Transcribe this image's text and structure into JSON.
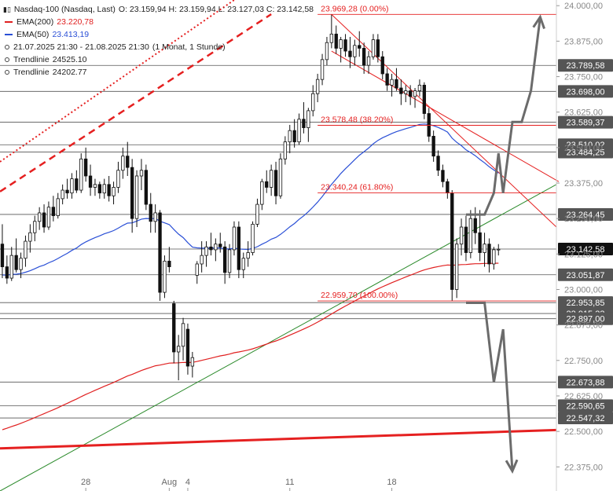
{
  "legend": {
    "instrument": "Nasdaq-100 (Nasdaq, Last)",
    "ohlc": "O: 23.159,94  H: 23.159,94  L: 23.127,03  C: 23.142,58",
    "ema200_label": "EMA(200)",
    "ema200_value": "23.220,78",
    "ema50_label": "EMA(50)",
    "ema50_value": "23.413,19",
    "period": "21.07.2025 21:30 - 21.08.2025 21:30",
    "interval": "(1 Monat, 1 Stunde)",
    "trend1_label": "Trendlinie",
    "trend1_value": "24525.10",
    "trend2_label": "Trendlinie",
    "trend2_value": "24202.77",
    "bars_icon": "candlestick-icon",
    "colors": {
      "ema200": "#e02020",
      "ema50": "#2a4fd6"
    }
  },
  "chart_data": {
    "type": "candlestick",
    "x_tick_labels": [
      {
        "label": "28",
        "bar": 18
      },
      {
        "label": "Aug",
        "bar": 36
      },
      {
        "label": "4",
        "bar": 40
      },
      {
        "label": "11",
        "bar": 62
      },
      {
        "label": "18",
        "bar": 84
      }
    ],
    "y_ticks": [
      24000,
      23875,
      23750,
      23625,
      23500,
      23375,
      23250,
      23125,
      23000,
      22875,
      22750,
      22625,
      22500,
      22375
    ],
    "y_tick_labels": [
      "24.000,00",
      "23.875,00",
      "23.750,00",
      "23.625,00",
      "23.500,00",
      "23.375,00",
      "23.250,00",
      "23.125,00",
      "23.000,00",
      "22.875,00",
      "22.750,00",
      "22.625,00",
      "22.500,00",
      "22.375,00"
    ],
    "ylim": [
      22290,
      24020
    ],
    "bars_total": 120,
    "levels": [
      {
        "value": 23789.58,
        "label": "23.789,58",
        "highlight": false
      },
      {
        "value": 23698.0,
        "label": "23.698,00",
        "highlight": false
      },
      {
        "value": 23589.37,
        "label": "23.589,37",
        "highlight": false
      },
      {
        "value": 23510.02,
        "label": "23.510,02",
        "highlight": false
      },
      {
        "value": 23484.25,
        "label": "23.484,25",
        "highlight": false
      },
      {
        "value": 23264.45,
        "label": "23.264,45",
        "highlight": false
      },
      {
        "value": 23142.58,
        "label": "23.142,58",
        "highlight": true
      },
      {
        "value": 23051.87,
        "label": "23.051,87",
        "highlight": false
      },
      {
        "value": 22953.85,
        "label": "22.953,85",
        "highlight": false
      },
      {
        "value": 22915.33,
        "label": "22.915,33",
        "highlight": false
      },
      {
        "value": 22897.0,
        "label": "22.897,00",
        "highlight": false
      },
      {
        "value": 22673.88,
        "label": "22.673,88",
        "highlight": false
      },
      {
        "value": 22590.65,
        "label": "22.590,65",
        "highlight": false
      },
      {
        "value": 22547.32,
        "label": "22.547,32",
        "highlight": false
      }
    ],
    "fibonacci": [
      {
        "value": 23969.28,
        "label": "23.969,28 (0.00%)"
      },
      {
        "value": 23578.48,
        "label": "23.578,48 (38.20%)"
      },
      {
        "value": 23340.24,
        "label": "23.340,24 (61.80%)"
      },
      {
        "value": 22959.7,
        "label": "22.959,70 (100.00%)"
      }
    ],
    "fib_start_bar": 68,
    "ohlc": [
      [
        23160,
        23230,
        23040,
        23080
      ],
      [
        23080,
        23120,
        23020,
        23040
      ],
      [
        23040,
        23150,
        23030,
        23120
      ],
      [
        23120,
        23180,
        23060,
        23070
      ],
      [
        23070,
        23130,
        23040,
        23110
      ],
      [
        23110,
        23190,
        23080,
        23170
      ],
      [
        23170,
        23230,
        23130,
        23200
      ],
      [
        23200,
        23260,
        23170,
        23240
      ],
      [
        23240,
        23290,
        23210,
        23270
      ],
      [
        23270,
        23300,
        23200,
        23220
      ],
      [
        23220,
        23310,
        23210,
        23290
      ],
      [
        23290,
        23330,
        23240,
        23260
      ],
      [
        23260,
        23340,
        23250,
        23320
      ],
      [
        23320,
        23370,
        23300,
        23350
      ],
      [
        23350,
        23390,
        23320,
        23340
      ],
      [
        23340,
        23410,
        23320,
        23390
      ],
      [
        23390,
        23420,
        23340,
        23350
      ],
      [
        23350,
        23480,
        23340,
        23460
      ],
      [
        23460,
        23500,
        23380,
        23400
      ],
      [
        23400,
        23440,
        23330,
        23360
      ],
      [
        23360,
        23390,
        23330,
        23370
      ],
      [
        23370,
        23380,
        23320,
        23340
      ],
      [
        23340,
        23390,
        23320,
        23370
      ],
      [
        23370,
        23400,
        23310,
        23330
      ],
      [
        23330,
        23380,
        23300,
        23360
      ],
      [
        23360,
        23450,
        23340,
        23420
      ],
      [
        23420,
        23500,
        23390,
        23470
      ],
      [
        23470,
        23520,
        23400,
        23430
      ],
      [
        23430,
        23460,
        23200,
        23250
      ],
      [
        23250,
        23420,
        23220,
        23400
      ],
      [
        23400,
        23460,
        23350,
        23420
      ],
      [
        23420,
        23440,
        23280,
        23300
      ],
      [
        23300,
        23340,
        23200,
        23240
      ],
      [
        23240,
        23300,
        23200,
        23270
      ],
      [
        23270,
        23280,
        22960,
        22990
      ],
      [
        22990,
        23120,
        22970,
        23100
      ],
      [
        23100,
        23150,
        23060,
        23080
      ],
      [
        22950,
        22960,
        22740,
        22780
      ],
      [
        22780,
        22840,
        22680,
        22800
      ],
      [
        22800,
        22900,
        22750,
        22880
      ],
      [
        22860,
        22880,
        22700,
        22730
      ],
      [
        22730,
        22780,
        22690,
        22760
      ],
      [
        23050,
        23100,
        23020,
        23090
      ],
      [
        23090,
        23170,
        23060,
        23120
      ],
      [
        23120,
        23170,
        23080,
        23150
      ],
      [
        23150,
        23200,
        23120,
        23140
      ],
      [
        23140,
        23180,
        23100,
        23160
      ],
      [
        23160,
        23200,
        23130,
        23150
      ],
      [
        23150,
        23170,
        23020,
        23060
      ],
      [
        23060,
        23160,
        23040,
        23140
      ],
      [
        23140,
        23240,
        23120,
        23220
      ],
      [
        23220,
        23240,
        23040,
        23070
      ],
      [
        23070,
        23130,
        23040,
        23110
      ],
      [
        23110,
        23170,
        23080,
        23130
      ],
      [
        23130,
        23240,
        23120,
        23230
      ],
      [
        23230,
        23320,
        23220,
        23300
      ],
      [
        23300,
        23390,
        23280,
        23380
      ],
      [
        23380,
        23420,
        23340,
        23360
      ],
      [
        23360,
        23440,
        23330,
        23420
      ],
      [
        23420,
        23450,
        23300,
        23330
      ],
      [
        23330,
        23480,
        23320,
        23460
      ],
      [
        23460,
        23540,
        23440,
        23520
      ],
      [
        23520,
        23580,
        23480,
        23560
      ],
      [
        23560,
        23600,
        23500,
        23520
      ],
      [
        23520,
        23620,
        23510,
        23600
      ],
      [
        23600,
        23660,
        23550,
        23570
      ],
      [
        23570,
        23640,
        23520,
        23630
      ],
      [
        23630,
        23720,
        23610,
        23690
      ],
      [
        23690,
        23760,
        23660,
        23740
      ],
      [
        23740,
        23830,
        23720,
        23810
      ],
      [
        23810,
        23890,
        23790,
        23870
      ],
      [
        23870,
        23969,
        23850,
        23900
      ],
      [
        23900,
        23930,
        23830,
        23850
      ],
      [
        23850,
        23890,
        23800,
        23880
      ],
      [
        23880,
        23900,
        23820,
        23840
      ],
      [
        23840,
        23890,
        23780,
        23820
      ],
      [
        23820,
        23880,
        23790,
        23860
      ],
      [
        23860,
        23910,
        23820,
        23850
      ],
      [
        23850,
        23870,
        23760,
        23790
      ],
      [
        23790,
        23840,
        23760,
        23820
      ],
      [
        23820,
        23900,
        23810,
        23880
      ],
      [
        23880,
        23900,
        23800,
        23820
      ],
      [
        23820,
        23840,
        23740,
        23760
      ],
      [
        23760,
        23780,
        23700,
        23720
      ],
      [
        23720,
        23760,
        23680,
        23740
      ],
      [
        23740,
        23780,
        23700,
        23710
      ],
      [
        23710,
        23740,
        23650,
        23690
      ],
      [
        23690,
        23720,
        23660,
        23700
      ],
      [
        23700,
        23720,
        23650,
        23680
      ],
      [
        23680,
        23710,
        23640,
        23700
      ],
      [
        23700,
        23740,
        23680,
        23720
      ],
      [
        23720,
        23730,
        23600,
        23620
      ],
      [
        23620,
        23640,
        23520,
        23540
      ],
      [
        23540,
        23560,
        23450,
        23470
      ],
      [
        23470,
        23490,
        23400,
        23420
      ],
      [
        23420,
        23440,
        23360,
        23380
      ],
      [
        23380,
        23390,
        23320,
        23340
      ],
      [
        23340,
        23350,
        22960,
        23000
      ],
      [
        23000,
        23180,
        22970,
        23160
      ],
      [
        23160,
        23250,
        23120,
        23220
      ],
      [
        23220,
        23260,
        23100,
        23130
      ],
      [
        23130,
        23280,
        23110,
        23250
      ],
      [
        23250,
        23290,
        23160,
        23200
      ],
      [
        23200,
        23280,
        23100,
        23130
      ],
      [
        23130,
        23200,
        23080,
        23160
      ],
      [
        23160,
        23180,
        23060,
        23090
      ],
      [
        23090,
        23150,
        23070,
        23140
      ],
      [
        23140,
        23160,
        23120,
        23142
      ]
    ],
    "analysis_paths": [
      {
        "direction": "up",
        "points": [
          [
            100,
            23264
          ],
          [
            104,
            23264
          ],
          [
            106,
            23340
          ],
          [
            107,
            23480
          ],
          [
            108,
            23340
          ],
          [
            110,
            23590
          ],
          [
            112,
            23590
          ],
          [
            114,
            23700
          ],
          [
            116,
            23960
          ]
        ]
      },
      {
        "direction": "down",
        "points": [
          [
            100,
            22953
          ],
          [
            104,
            22953
          ],
          [
            106,
            22673
          ],
          [
            108,
            22860
          ],
          [
            110,
            22360
          ]
        ]
      }
    ]
  }
}
